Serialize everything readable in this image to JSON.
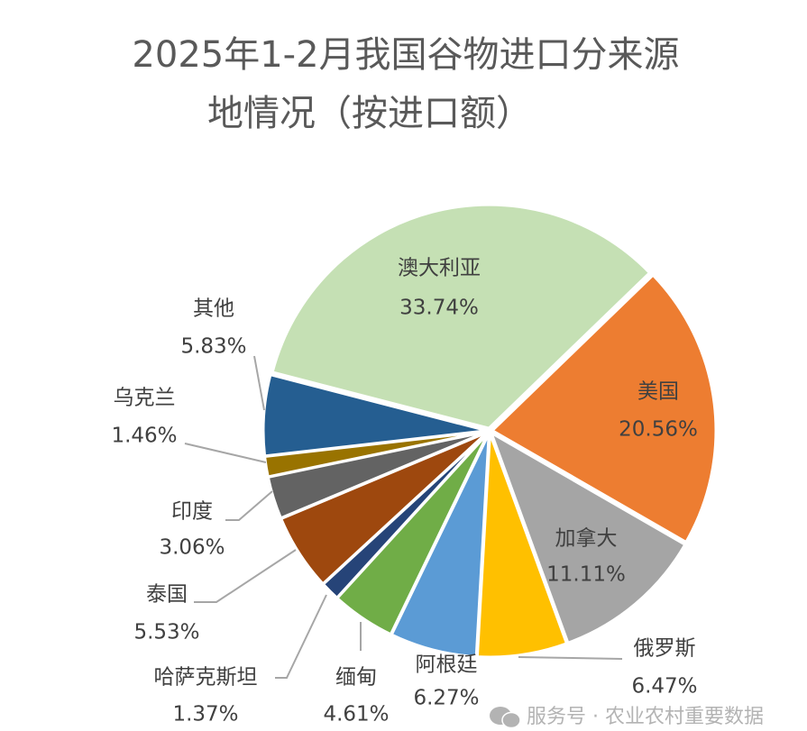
{
  "chart_data": {
    "type": "pie",
    "title_lines": [
      "2025年1-2月我国谷物进口分来源",
      "地情况（按进口额）"
    ],
    "unit": "%",
    "slices": [
      {
        "label": "澳大利亚",
        "value": 33.74,
        "display": "33.74%",
        "color": "#C5E0B4"
      },
      {
        "label": "美国",
        "value": 20.56,
        "display": "20.56%",
        "color": "#ED7D31"
      },
      {
        "label": "加拿大",
        "value": 11.11,
        "display": "11.11%",
        "color": "#A5A5A5"
      },
      {
        "label": "俄罗斯",
        "value": 6.47,
        "display": "6.47%",
        "color": "#FFC000"
      },
      {
        "label": "阿根廷",
        "value": 6.27,
        "display": "6.27%",
        "color": "#5B9BD5"
      },
      {
        "label": "缅甸",
        "value": 4.61,
        "display": "4.61%",
        "color": "#70AD47"
      },
      {
        "label": "哈萨克斯坦",
        "value": 1.37,
        "display": "1.37%",
        "color": "#264478"
      },
      {
        "label": "泰国",
        "value": 5.53,
        "display": "5.53%",
        "color": "#9E480E"
      },
      {
        "label": "印度",
        "value": 3.06,
        "display": "3.06%",
        "color": "#636363"
      },
      {
        "label": "乌克兰",
        "value": 1.46,
        "display": "1.46%",
        "color": "#997300"
      },
      {
        "label": "其他",
        "value": 5.83,
        "display": "5.83%",
        "color": "#255E91"
      }
    ],
    "legend": "none"
  },
  "watermark": {
    "icon": "wechat-icon",
    "text": "服务号 · 农业农村重要数据"
  }
}
